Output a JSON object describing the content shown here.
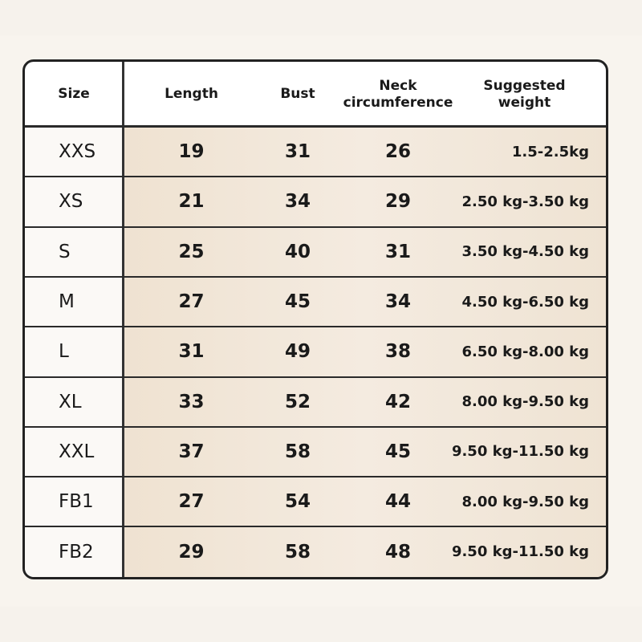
{
  "table": {
    "headers": [
      "Size",
      "Length",
      "Bust",
      "Neck circumference",
      "Suggested weight"
    ],
    "rows": [
      [
        "XXS",
        19,
        31,
        26,
        "1.5-2.5kg"
      ],
      [
        "XS",
        21,
        34,
        29,
        "2.50 kg-3.50 kg"
      ],
      [
        "S",
        25,
        40,
        31,
        "3.50 kg-4.50 kg"
      ],
      [
        "M",
        27,
        45,
        34,
        "4.50 kg-6.50 kg"
      ],
      [
        "L",
        31,
        49,
        38,
        "6.50 kg-8.00 kg"
      ],
      [
        "XL",
        33,
        52,
        42,
        "8.00 kg-9.50 kg"
      ],
      [
        "XXL",
        37,
        58,
        45,
        "9.50 kg-11.50 kg"
      ],
      [
        "FB1",
        27,
        54,
        44,
        "8.00 kg-9.50 kg"
      ],
      [
        "FB2",
        29,
        58,
        48,
        "9.50 kg-11.50 kg"
      ]
    ]
  }
}
